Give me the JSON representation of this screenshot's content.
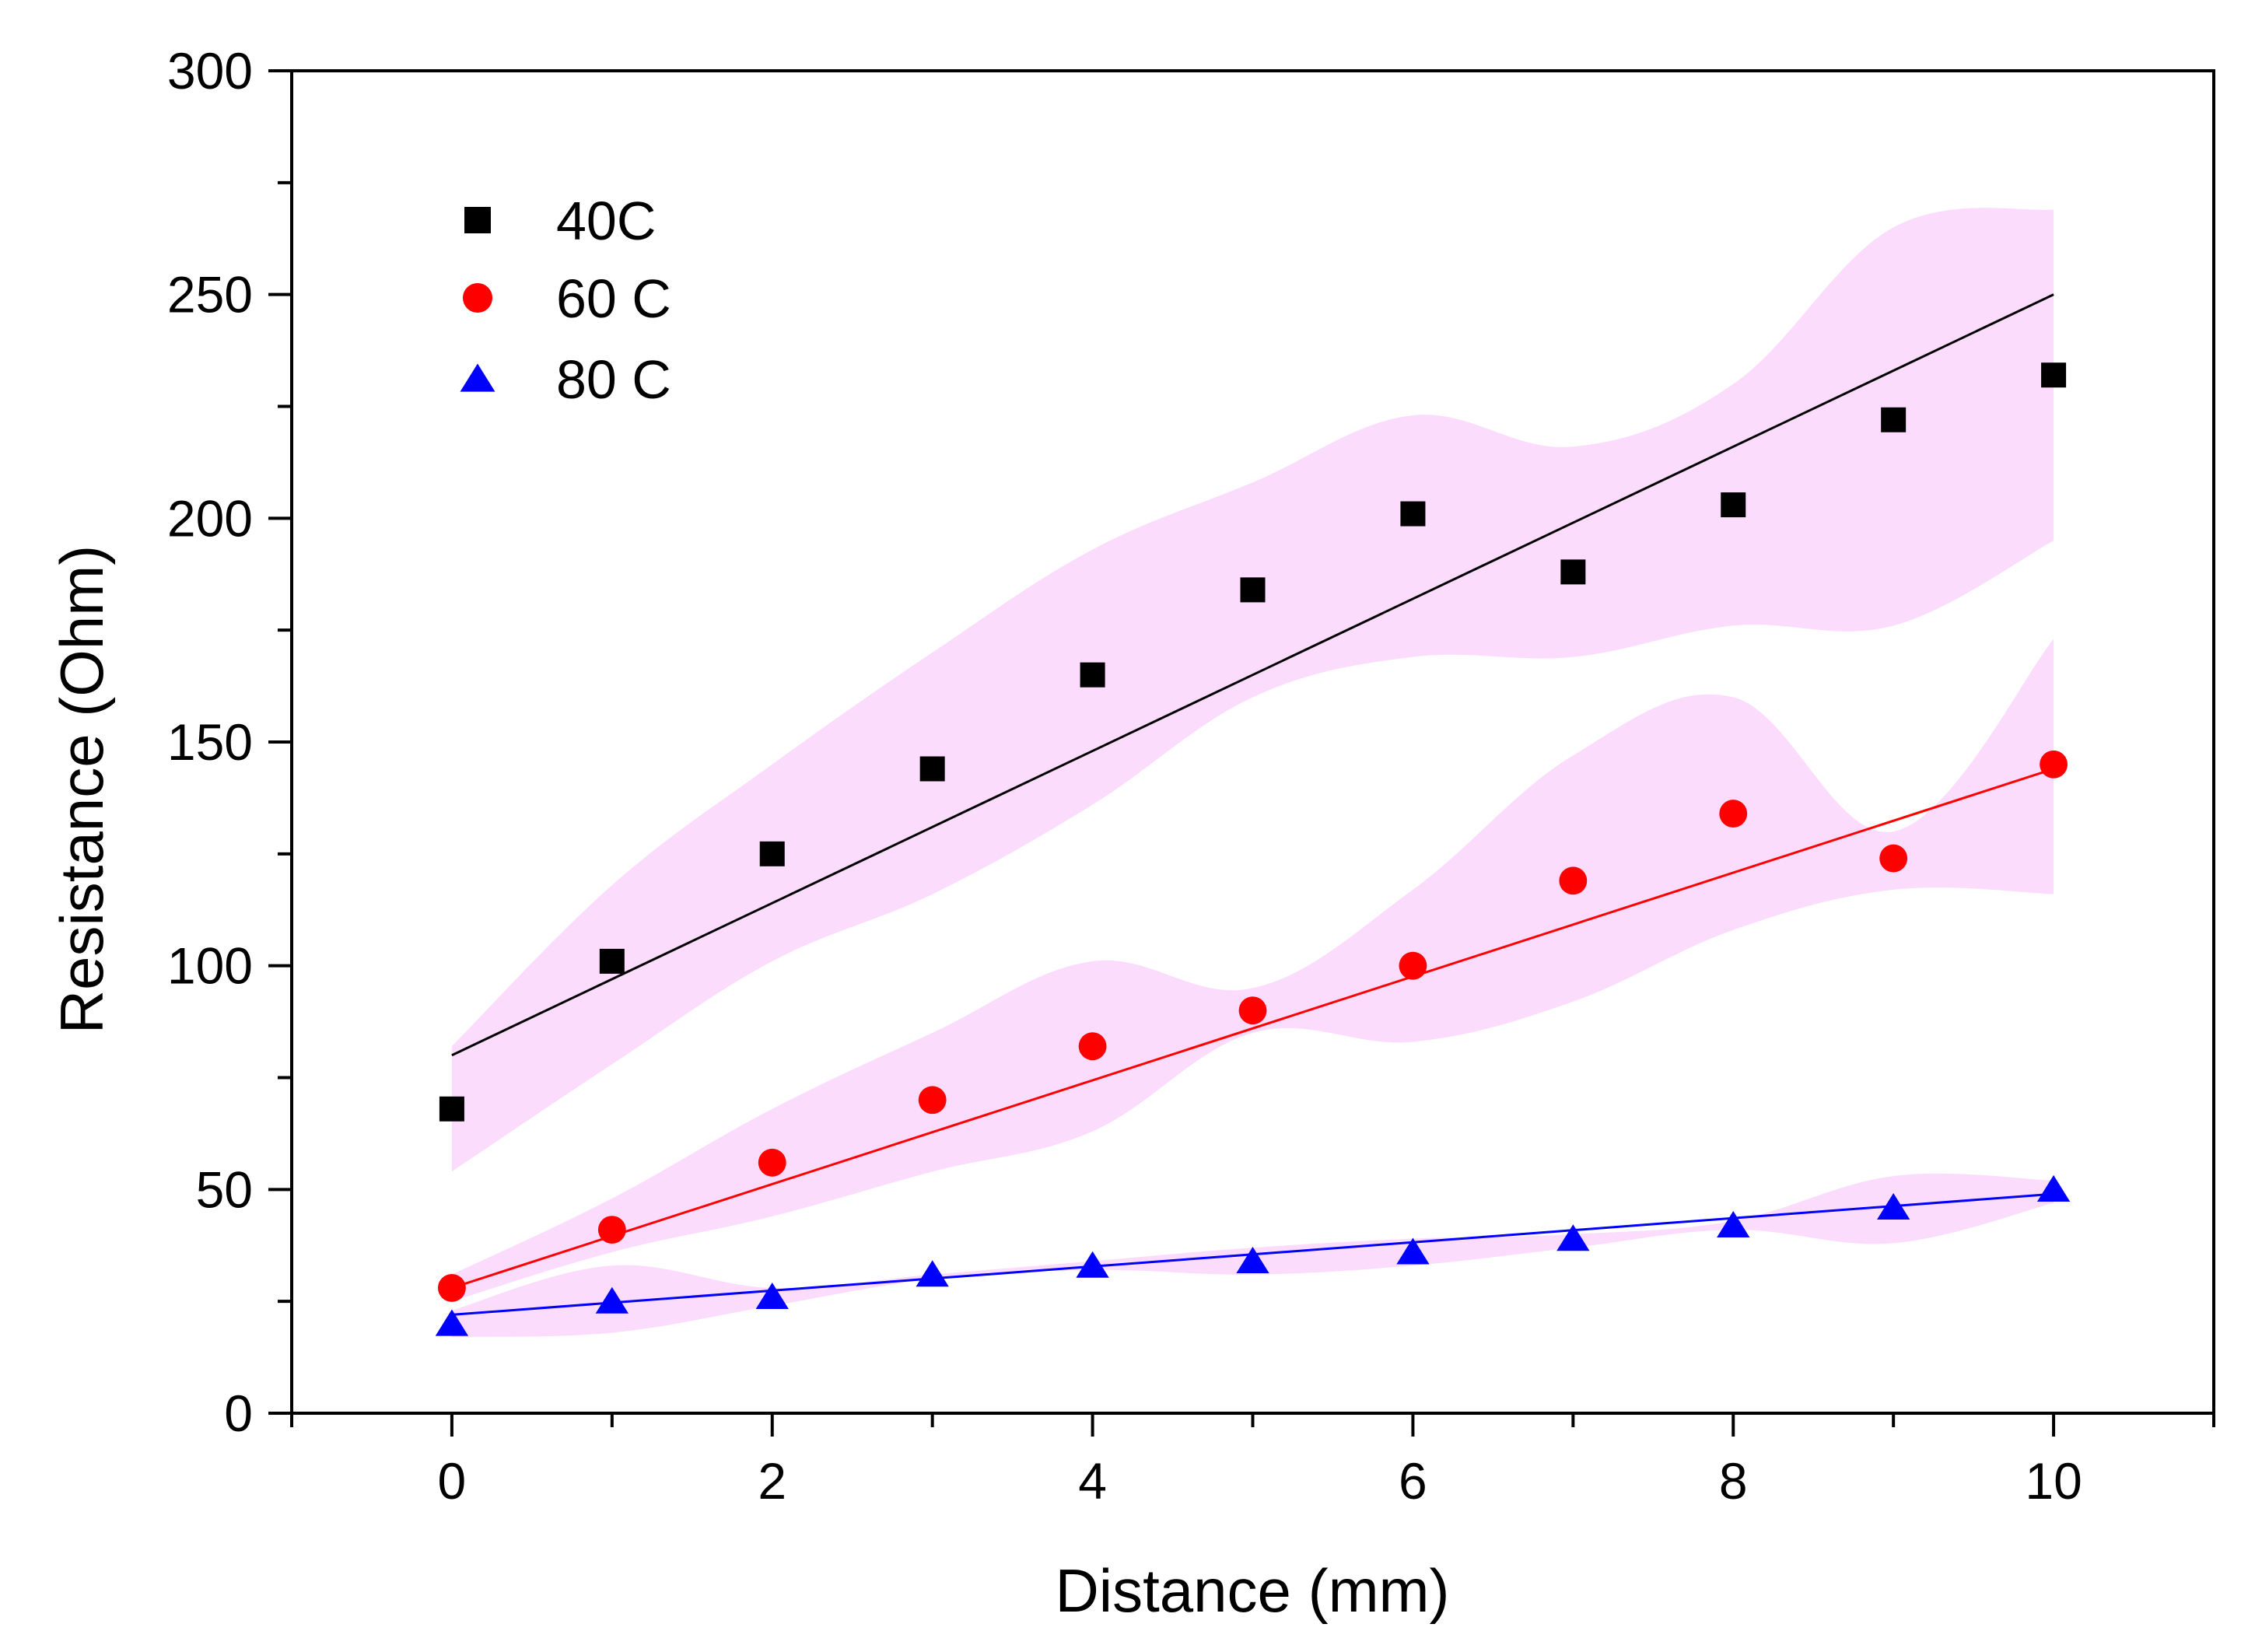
{
  "chart_data": {
    "type": "scatter",
    "title": "",
    "xlabel": "Distance (mm)",
    "ylabel": "Resistance (Ohm)",
    "xlim": [
      -1,
      11
    ],
    "ylim": [
      0,
      300
    ],
    "xticks": [
      0,
      2,
      4,
      6,
      8,
      10
    ],
    "yticks": [
      0,
      50,
      100,
      150,
      200,
      250,
      300
    ],
    "grid": false,
    "legend_position": "top-left",
    "series": [
      {
        "name": "40C",
        "marker": "square",
        "color": "#000000",
        "x": [
          0,
          1,
          2,
          3,
          4,
          5,
          6,
          7,
          8,
          9,
          10
        ],
        "values": [
          68,
          101,
          125,
          144,
          165,
          184,
          201,
          188,
          203,
          222,
          232
        ],
        "band_upper": [
          82,
          118,
          145,
          170,
          193,
          208,
          223,
          216,
          230,
          265,
          269
        ],
        "band_lower": [
          54,
          78,
          101,
          116,
          136,
          160,
          169,
          169,
          176,
          176,
          195
        ],
        "fit": {
          "x": [
            0,
            10
          ],
          "y": [
            80,
            250
          ],
          "color": "#000000"
        }
      },
      {
        "name": "60 C",
        "marker": "circle",
        "color": "#ff0000",
        "x": [
          0,
          1,
          2,
          3,
          4,
          5,
          6,
          7,
          8,
          9,
          10
        ],
        "values": [
          28,
          41,
          56,
          70,
          82,
          90,
          100,
          119,
          134,
          124,
          145
        ],
        "band_upper": [
          31,
          48,
          68,
          85,
          101,
          95,
          117,
          147,
          160,
          130,
          173
        ],
        "band_lower": [
          25,
          36,
          44,
          54,
          63,
          85,
          83,
          92,
          108,
          117,
          116
        ],
        "fit": {
          "x": [
            0,
            10
          ],
          "y": [
            28,
            144
          ],
          "color": "#ff0000"
        }
      },
      {
        "name": "80 C",
        "marker": "triangle",
        "color": "#0000ff",
        "x": [
          0,
          1,
          2,
          3,
          4,
          5,
          6,
          7,
          8,
          9,
          10
        ],
        "values": [
          20,
          25,
          26,
          31,
          33,
          34,
          36,
          39,
          42,
          46,
          50
        ],
        "band_upper": [
          23,
          33,
          28,
          31,
          34,
          37,
          39,
          40,
          43,
          53,
          52
        ],
        "band_lower": [
          17,
          18,
          24,
          30,
          32,
          31,
          33,
          37,
          41,
          38,
          47
        ],
        "fit": {
          "x": [
            0,
            10
          ],
          "y": [
            22,
            49
          ],
          "color": "#0000ff"
        }
      }
    ],
    "band_color": "#fcdcfc"
  }
}
